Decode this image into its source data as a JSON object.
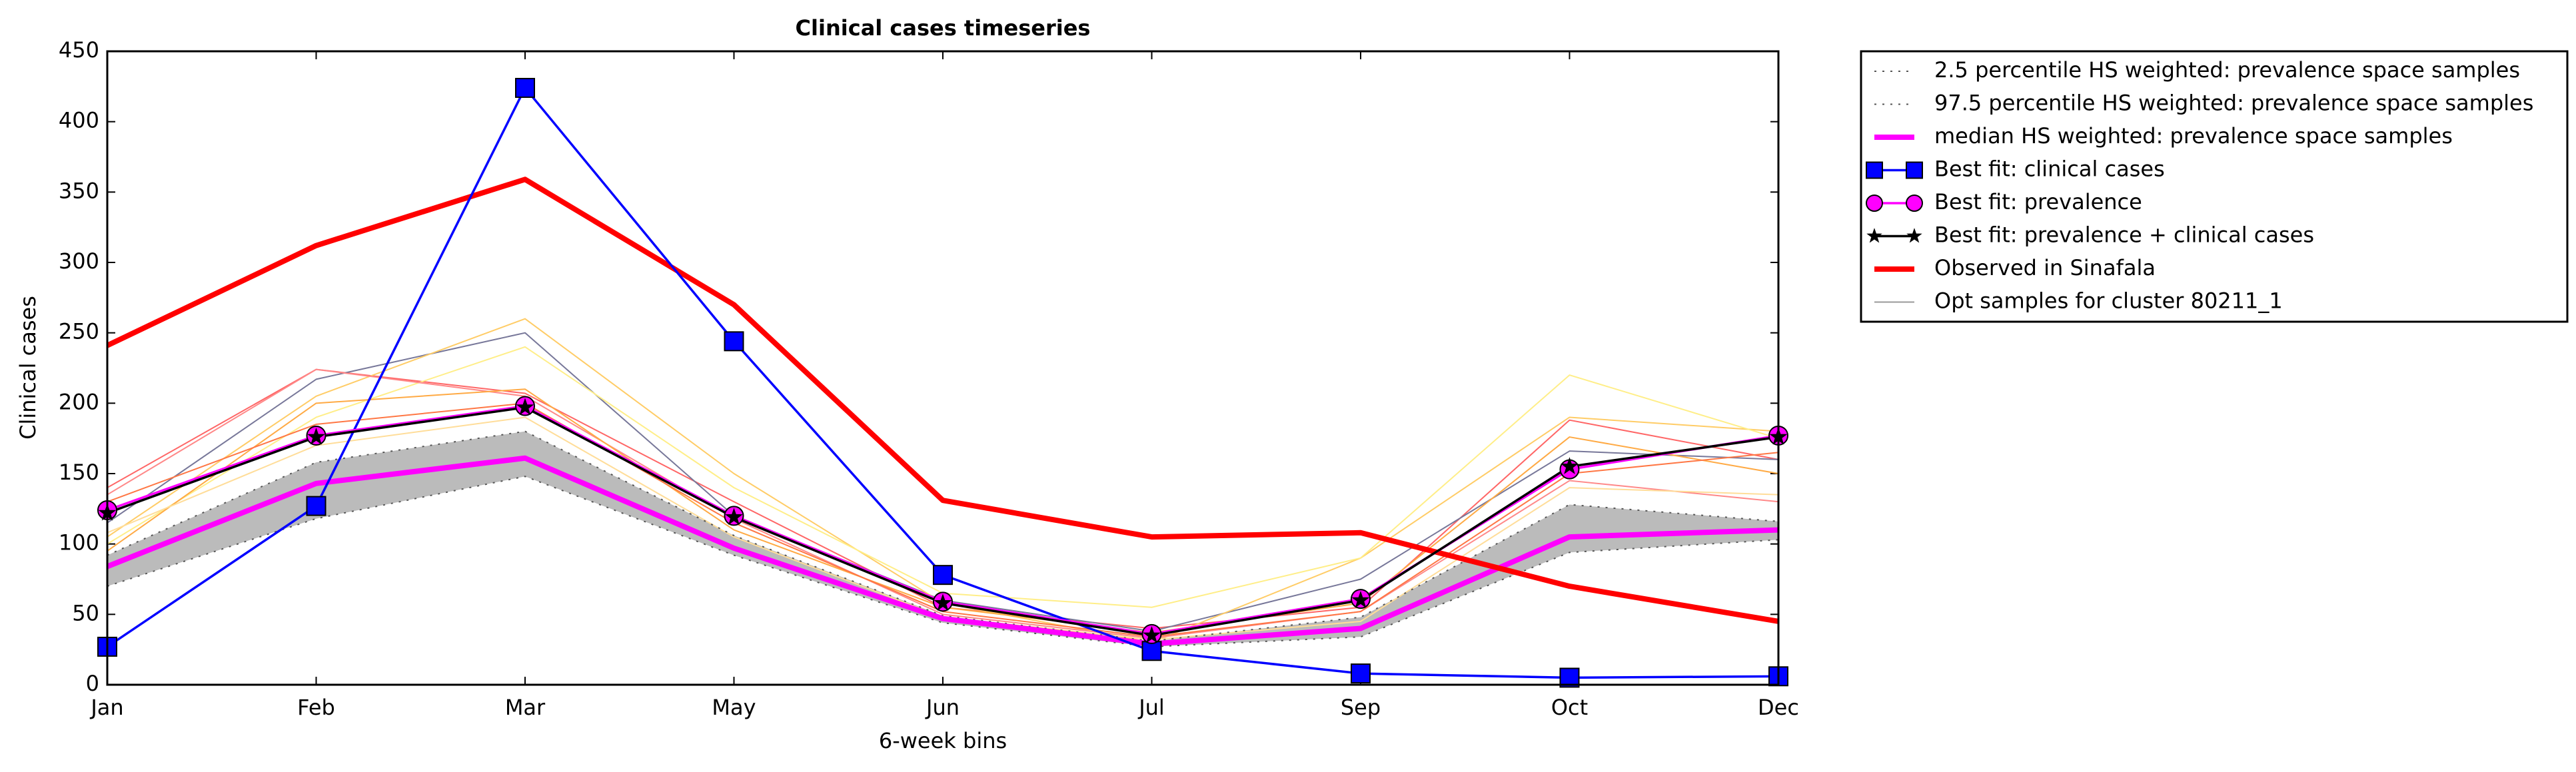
{
  "chart_data": {
    "type": "line",
    "title": "Clinical cases timeseries",
    "xlabel": "6-week bins",
    "ylabel": "Clinical cases",
    "categories": [
      "Jan",
      "Feb",
      "Mar",
      "May",
      "Jun",
      "Jul",
      "Sep",
      "Oct",
      "Dec"
    ],
    "ylim": [
      0,
      450
    ],
    "yticks": [
      0,
      50,
      100,
      150,
      200,
      250,
      300,
      350,
      400,
      450
    ],
    "band_fill": "#bbbbbb",
    "samples": [
      {
        "color": "#ff6666",
        "values": [
          140,
          224,
          207,
          130,
          55,
          40,
          55,
          188,
          160
        ]
      },
      {
        "color": "#777799",
        "values": [
          115,
          217,
          250,
          120,
          60,
          38,
          75,
          166,
          160
        ]
      },
      {
        "color": "#ffcc66",
        "values": [
          105,
          205,
          260,
          150,
          58,
          30,
          90,
          190,
          180
        ]
      },
      {
        "color": "#ffee88",
        "values": [
          100,
          190,
          240,
          140,
          65,
          55,
          90,
          220,
          175
        ]
      },
      {
        "color": "#ff8888",
        "values": [
          135,
          224,
          205,
          118,
          50,
          33,
          52,
          145,
          130
        ]
      },
      {
        "color": "#ffaa44",
        "values": [
          95,
          200,
          210,
          110,
          55,
          37,
          58,
          176,
          150
        ]
      },
      {
        "color": "#ff7744",
        "values": [
          130,
          185,
          200,
          115,
          52,
          34,
          52,
          150,
          165
        ]
      },
      {
        "color": "#ffdd99",
        "values": [
          108,
          170,
          190,
          105,
          48,
          32,
          45,
          140,
          135
        ]
      }
    ],
    "series": [
      {
        "name": "2.5 percentile HS weighted: prevalence space samples",
        "color": "#555555",
        "linestyle": "dotted",
        "linewidth": 2,
        "values": [
          70,
          118,
          148,
          92,
          44,
          27,
          34,
          94,
          103
        ]
      },
      {
        "name": "97.5 percentile HS weighted: prevalence space samples",
        "color": "#555555",
        "linestyle": "dotted",
        "linewidth": 2,
        "values": [
          92,
          158,
          180,
          106,
          49,
          31,
          48,
          128,
          116
        ]
      },
      {
        "name": "median HS weighted: prevalence space samples",
        "color": "#ff00ff",
        "linestyle": "solid",
        "linewidth": 8,
        "values": [
          84,
          143,
          161,
          97,
          47,
          29,
          40,
          105,
          110
        ]
      },
      {
        "name": "Best fit: clinical cases",
        "color": "#0000ff",
        "linestyle": "solid",
        "linewidth": 3.5,
        "marker": "square",
        "values": [
          27,
          127,
          424,
          244,
          78,
          24,
          8,
          5,
          6
        ]
      },
      {
        "name": "Best fit: prevalence",
        "color": "#ff00ff",
        "linestyle": "solid",
        "linewidth": 3.5,
        "marker": "circle",
        "values": [
          124,
          177,
          198,
          120,
          59,
          36,
          61,
          153,
          177
        ]
      },
      {
        "name": "Best fit: prevalence + clinical cases",
        "color": "#000000",
        "linestyle": "solid",
        "linewidth": 3.5,
        "marker": "star",
        "values": [
          122,
          176,
          197,
          119,
          58,
          35,
          60,
          155,
          176
        ]
      },
      {
        "name": "Observed in Sinafala",
        "color": "#ff0000",
        "linestyle": "solid",
        "linewidth": 8,
        "values": [
          241,
          312,
          359,
          270,
          131,
          105,
          108,
          70,
          45
        ]
      },
      {
        "name": "Opt samples for cluster 80211_1",
        "color": "#999999",
        "linestyle": "solid",
        "linewidth": 2,
        "legend_only": true
      }
    ]
  }
}
